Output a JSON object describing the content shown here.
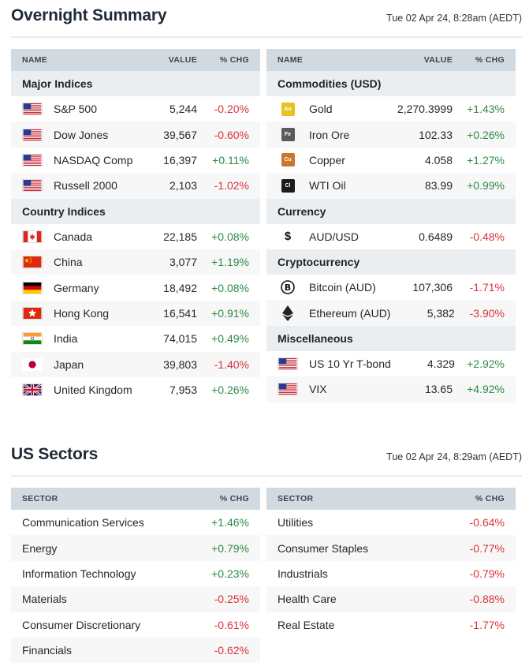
{
  "overnight": {
    "title": "Overnight Summary",
    "timestamp": "Tue 02 Apr 24, 8:28am (AEDT)",
    "left": {
      "headers": {
        "name": "NAME",
        "value": "VALUE",
        "chg": "% CHG"
      },
      "groups": [
        {
          "label": "Major Indices",
          "rows": [
            {
              "icon": "us-flag-icon",
              "name": "S&P 500",
              "value": "5,244",
              "chg": "-0.20%",
              "dir": "neg"
            },
            {
              "icon": "us-flag-icon",
              "name": "Dow Jones",
              "value": "39,567",
              "chg": "-0.60%",
              "dir": "neg"
            },
            {
              "icon": "us-flag-icon",
              "name": "NASDAQ Comp",
              "value": "16,397",
              "chg": "+0.11%",
              "dir": "pos"
            },
            {
              "icon": "us-flag-icon",
              "name": "Russell 2000",
              "value": "2,103",
              "chg": "-1.02%",
              "dir": "neg"
            }
          ]
        },
        {
          "label": "Country Indices",
          "rows": [
            {
              "icon": "canada-flag-icon",
              "name": "Canada",
              "value": "22,185",
              "chg": "+0.08%",
              "dir": "pos"
            },
            {
              "icon": "china-flag-icon",
              "name": "China",
              "value": "3,077",
              "chg": "+1.19%",
              "dir": "pos"
            },
            {
              "icon": "germany-flag-icon",
              "name": "Germany",
              "value": "18,492",
              "chg": "+0.08%",
              "dir": "pos"
            },
            {
              "icon": "hongkong-flag-icon",
              "name": "Hong Kong",
              "value": "16,541",
              "chg": "+0.91%",
              "dir": "pos"
            },
            {
              "icon": "india-flag-icon",
              "name": "India",
              "value": "74,015",
              "chg": "+0.49%",
              "dir": "pos"
            },
            {
              "icon": "japan-flag-icon",
              "name": "Japan",
              "value": "39,803",
              "chg": "-1.40%",
              "dir": "neg"
            },
            {
              "icon": "uk-flag-icon",
              "name": "United Kingdom",
              "value": "7,953",
              "chg": "+0.26%",
              "dir": "pos"
            }
          ]
        }
      ]
    },
    "right": {
      "headers": {
        "name": "NAME",
        "value": "VALUE",
        "chg": "% CHG"
      },
      "groups": [
        {
          "label": "Commodities (USD)",
          "rows": [
            {
              "icon": "gold-icon",
              "badge": "Au",
              "color": "#e6c31e",
              "name": "Gold",
              "value": "2,270.3999",
              "chg": "+1.43%",
              "dir": "pos"
            },
            {
              "icon": "iron-ore-icon",
              "badge": "Fe",
              "color": "#5a5a5a",
              "name": "Iron Ore",
              "value": "102.33",
              "chg": "+0.26%",
              "dir": "pos"
            },
            {
              "icon": "copper-icon",
              "badge": "Cu",
              "color": "#c8782a",
              "name": "Copper",
              "value": "4.058",
              "chg": "+1.27%",
              "dir": "pos"
            },
            {
              "icon": "oil-icon",
              "badge": "Cl",
              "color": "#1c1c1c",
              "name": "WTI Oil",
              "value": "83.99",
              "chg": "+0.99%",
              "dir": "pos"
            }
          ]
        },
        {
          "label": "Currency",
          "rows": [
            {
              "icon": "dollar-icon",
              "name": "AUD/USD",
              "value": "0.6489",
              "chg": "-0.48%",
              "dir": "neg"
            }
          ]
        },
        {
          "label": "Cryptocurrency",
          "rows": [
            {
              "icon": "bitcoin-icon",
              "name": "Bitcoin (AUD)",
              "value": "107,306",
              "chg": "-1.71%",
              "dir": "neg"
            },
            {
              "icon": "ethereum-icon",
              "name": "Ethereum (AUD)",
              "value": "5,382",
              "chg": "-3.90%",
              "dir": "neg"
            }
          ]
        },
        {
          "label": "Miscellaneous",
          "rows": [
            {
              "icon": "us-flag-icon",
              "name": "US 10 Yr T-bond",
              "value": "4.329",
              "chg": "+2.92%",
              "dir": "pos"
            },
            {
              "icon": "us-flag-icon",
              "name": "VIX",
              "value": "13.65",
              "chg": "+4.92%",
              "dir": "pos"
            }
          ]
        }
      ]
    }
  },
  "sectors": {
    "title": "US Sectors",
    "timestamp": "Tue 02 Apr 24, 8:29am (AEDT)",
    "headers": {
      "sector": "SECTOR",
      "chg": "% CHG"
    },
    "left": [
      {
        "name": "Communication Services",
        "chg": "+1.46%",
        "dir": "pos"
      },
      {
        "name": "Energy",
        "chg": "+0.79%",
        "dir": "pos"
      },
      {
        "name": "Information Technology",
        "chg": "+0.23%",
        "dir": "pos"
      },
      {
        "name": "Materials",
        "chg": "-0.25%",
        "dir": "neg"
      },
      {
        "name": "Consumer Discretionary",
        "chg": "-0.61%",
        "dir": "neg"
      },
      {
        "name": "Financials",
        "chg": "-0.62%",
        "dir": "neg"
      }
    ],
    "right": [
      {
        "name": "Utilities",
        "chg": "-0.64%",
        "dir": "neg"
      },
      {
        "name": "Consumer Staples",
        "chg": "-0.77%",
        "dir": "neg"
      },
      {
        "name": "Industrials",
        "chg": "-0.79%",
        "dir": "neg"
      },
      {
        "name": "Health Care",
        "chg": "-0.88%",
        "dir": "neg"
      },
      {
        "name": "Real Estate",
        "chg": "-1.77%",
        "dir": "neg"
      }
    ]
  }
}
